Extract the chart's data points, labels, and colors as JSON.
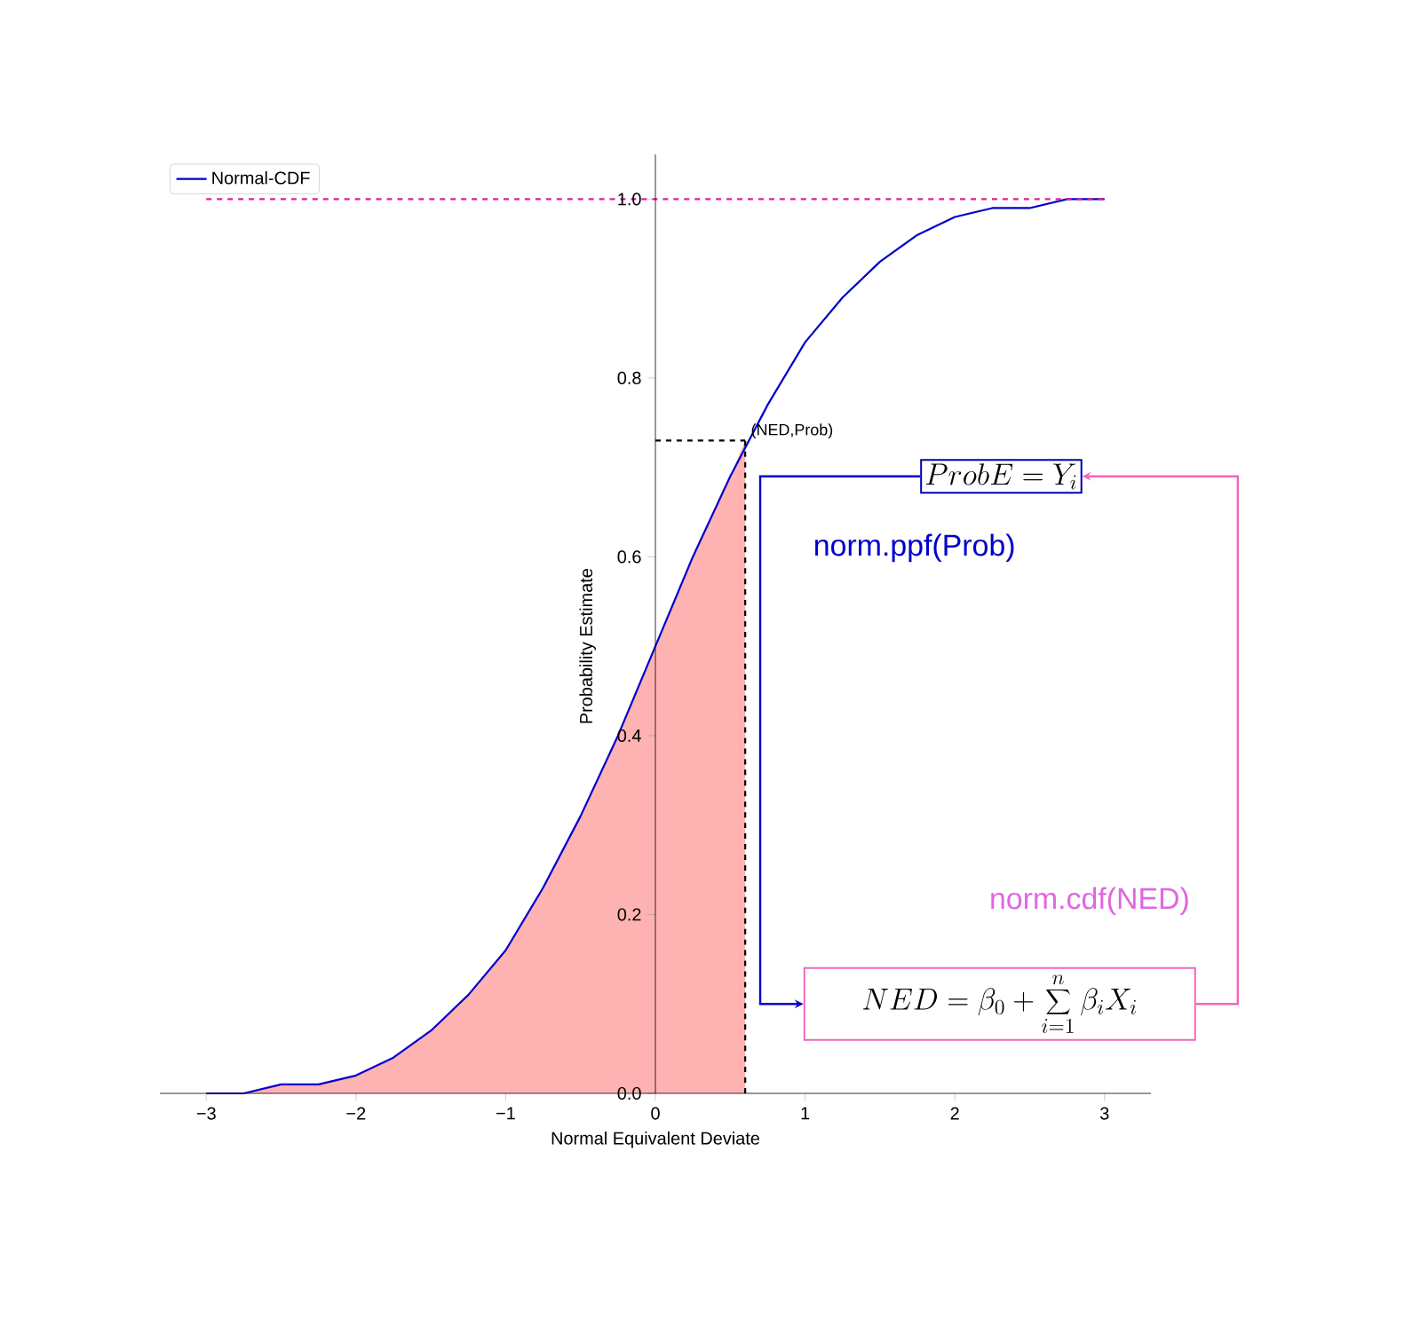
{
  "chart_data": {
    "type": "line",
    "xlabel": "Normal Equivalent Deviate",
    "ylabel": "Probability Estimate",
    "xlim": [
      -3.31,
      3.31
    ],
    "ylim": [
      0,
      1.05
    ],
    "xticks": [
      {
        "value": -3,
        "label": "−3"
      },
      {
        "value": -2,
        "label": "−2"
      },
      {
        "value": -1,
        "label": "−1"
      },
      0,
      1,
      2,
      3
    ],
    "yticks": [
      {
        "value": 0,
        "label": "0.0"
      },
      {
        "value": 0.2,
        "label": "0.2"
      },
      {
        "value": 0.4,
        "label": "0.4"
      },
      {
        "value": 0.6,
        "label": "0.6"
      },
      {
        "value": 0.8,
        "label": "0.8"
      },
      {
        "value": 1.0,
        "label": "1.0"
      }
    ],
    "legend": "top left",
    "series": [
      {
        "type": "area",
        "color": "#ffb2b2",
        "x": [
          -3,
          -2.75,
          -2.5,
          -2.25,
          -2,
          -1.75,
          -1.5,
          -1.25,
          -1,
          -0.75,
          -0.5,
          -0.25,
          0,
          0.25,
          0.5,
          0.6
        ],
        "values": [
          0.0,
          0.0,
          0.01,
          0.01,
          0.02,
          0.04,
          0.07,
          0.11,
          0.16,
          0.23,
          0.31,
          0.4,
          0.5,
          0.6,
          0.69,
          0.73
        ]
      },
      {
        "name": "Normal-CDF",
        "color": "#0000cc",
        "x": [
          -3,
          -2.75,
          -2.5,
          -2.25,
          -2,
          -1.75,
          -1.5,
          -1.25,
          -1,
          -0.75,
          -0.5,
          -0.25,
          0,
          0.25,
          0.5,
          0.75,
          1,
          1.25,
          1.5,
          1.75,
          2,
          2.25,
          2.5,
          2.75,
          3
        ],
        "values": [
          0.0,
          0.0,
          0.01,
          0.01,
          0.02,
          0.04,
          0.07,
          0.11,
          0.16,
          0.23,
          0.31,
          0.4,
          0.5,
          0.6,
          0.69,
          0.77,
          0.84,
          0.89,
          0.93,
          0.96,
          0.98,
          0.99,
          0.99,
          1.0,
          1.0
        ]
      },
      {
        "type": "line",
        "color": "#e0218a",
        "line_style": "dashed",
        "x": [
          -3,
          3
        ],
        "values": [
          1.0,
          1.0
        ]
      },
      {
        "type": "line",
        "color": "#000000",
        "line_style": "dashed",
        "x": [
          0,
          0.6
        ],
        "values": [
          0.73,
          0.73
        ]
      },
      {
        "type": "line",
        "color": "#000000",
        "line_style": "dashed",
        "x": [
          0.6,
          0.6
        ],
        "values": [
          0,
          0.73
        ]
      }
    ],
    "annotations": [
      {
        "text": "(NED,Prob)",
        "x": 0.6,
        "y": 0.73
      },
      "norm.ppf(Prob)",
      "norm.cdf(NED)",
      "ProbE = Y_i",
      "NED = \\beta_0 + \\sum_{i=1}^{n} \\beta_i X_i"
    ]
  }
}
